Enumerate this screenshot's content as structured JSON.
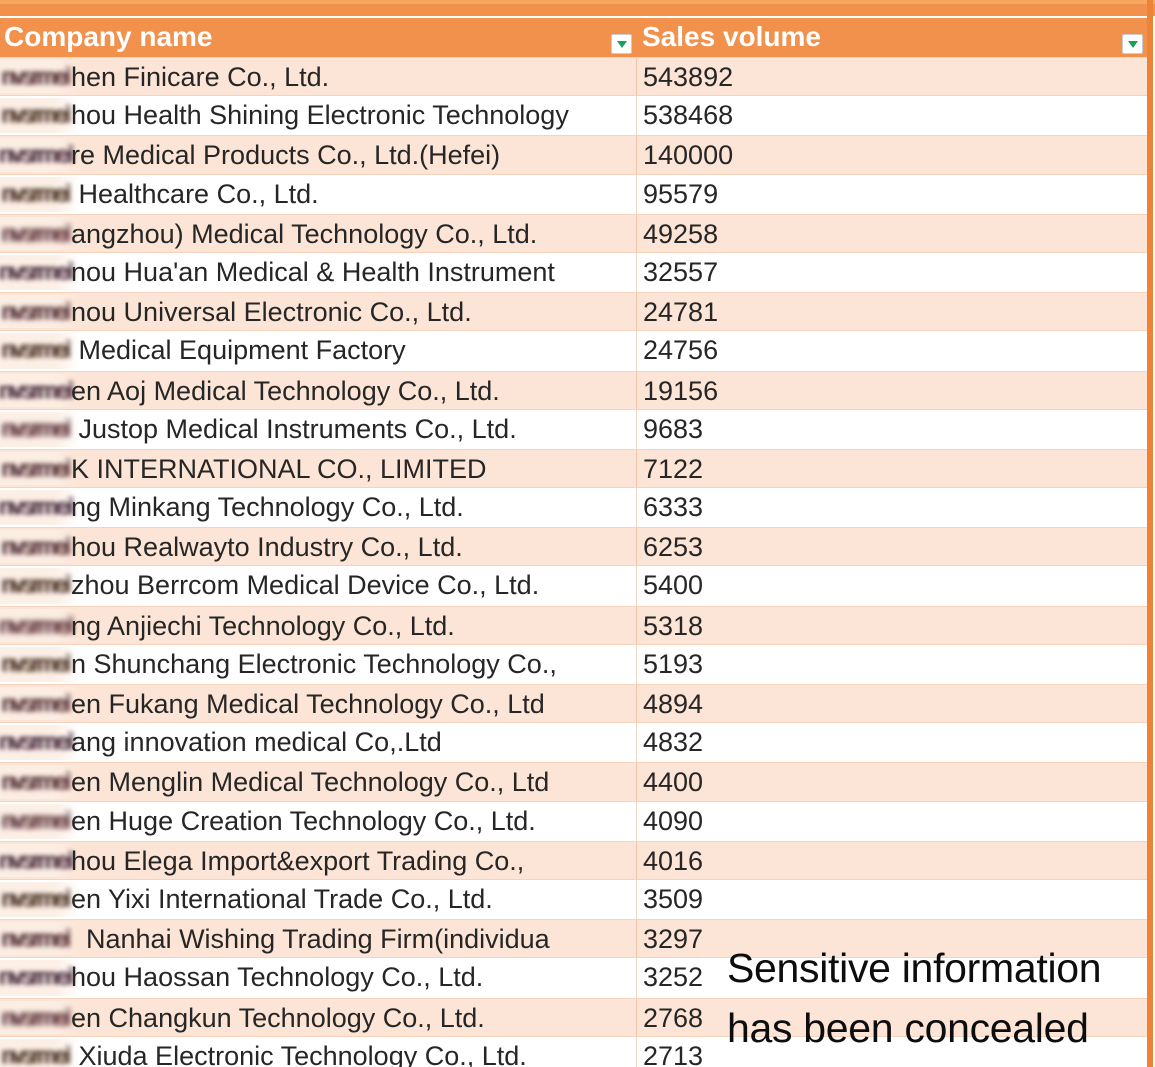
{
  "header": {
    "columns": [
      {
        "label": "Company name"
      },
      {
        "label": "Sales volume"
      }
    ]
  },
  "table": {
    "redacted_text": "nvsrmeib",
    "rows": [
      {
        "company": "hen Finicare Co., Ltd.",
        "sales": "543892"
      },
      {
        "company": "hou Health Shining Electronic Technology",
        "sales": "538468"
      },
      {
        "company": "re Medical Products Co., Ltd.(Hefei)",
        "sales": "140000"
      },
      {
        "company": " Healthcare Co., Ltd.",
        "sales": "95579"
      },
      {
        "company": "angzhou) Medical Technology Co., Ltd.",
        "sales": "49258"
      },
      {
        "company": "nou Hua'an Medical & Health Instrument",
        "sales": "32557"
      },
      {
        "company": "nou Universal Electronic Co., Ltd.",
        "sales": "24781"
      },
      {
        "company": " Medical Equipment Factory",
        "sales": "24756"
      },
      {
        "company": "en Aoj Medical Technology Co., Ltd.",
        "sales": "19156"
      },
      {
        "company": " Justop Medical Instruments Co., Ltd.",
        "sales": "9683"
      },
      {
        "company": "K INTERNATIONAL CO., LIMITED",
        "sales": "7122"
      },
      {
        "company": "ng Minkang Technology Co., Ltd.",
        "sales": "6333"
      },
      {
        "company": "hou Realwayto Industry Co., Ltd.",
        "sales": "6253"
      },
      {
        "company": "zhou Berrcom Medical Device Co., Ltd.",
        "sales": "5400"
      },
      {
        "company": "ng Anjiechi Technology Co., Ltd.",
        "sales": "5318"
      },
      {
        "company": "n Shunchang Electronic Technology Co.,",
        "sales": "5193"
      },
      {
        "company": "en Fukang Medical Technology Co., Ltd",
        "sales": "4894"
      },
      {
        "company": "ang innovation medical Co,.Ltd",
        "sales": "4832"
      },
      {
        "company": "en Menglin Medical Technology Co., Ltd",
        "sales": "4400"
      },
      {
        "company": "en Huge Creation Technology Co., Ltd.",
        "sales": "4090"
      },
      {
        "company": "hou Elega Import&export Trading Co.,",
        "sales": "4016"
      },
      {
        "company": "en Yixi International Trade Co., Ltd.",
        "sales": "3509"
      },
      {
        "company": "  Nanhai Wishing Trading Firm(individua",
        "sales": "3297"
      },
      {
        "company": "hou Haossan Technology Co., Ltd.",
        "sales": "3252"
      },
      {
        "company": "en Changkun Technology Co., Ltd.",
        "sales": "2768"
      },
      {
        "company": " Xiuda Electronic Technology Co., Ltd.",
        "sales": "2713"
      }
    ]
  },
  "overlay": {
    "line1": "Sensitive information",
    "line2": "has been concealed"
  },
  "colors": {
    "header_bg": "#f2914b",
    "band_row_bg": "#fce5d6",
    "right_strip": "#ec8336",
    "filter_arrow_green": "#1f9d5b",
    "text": "#262626"
  }
}
